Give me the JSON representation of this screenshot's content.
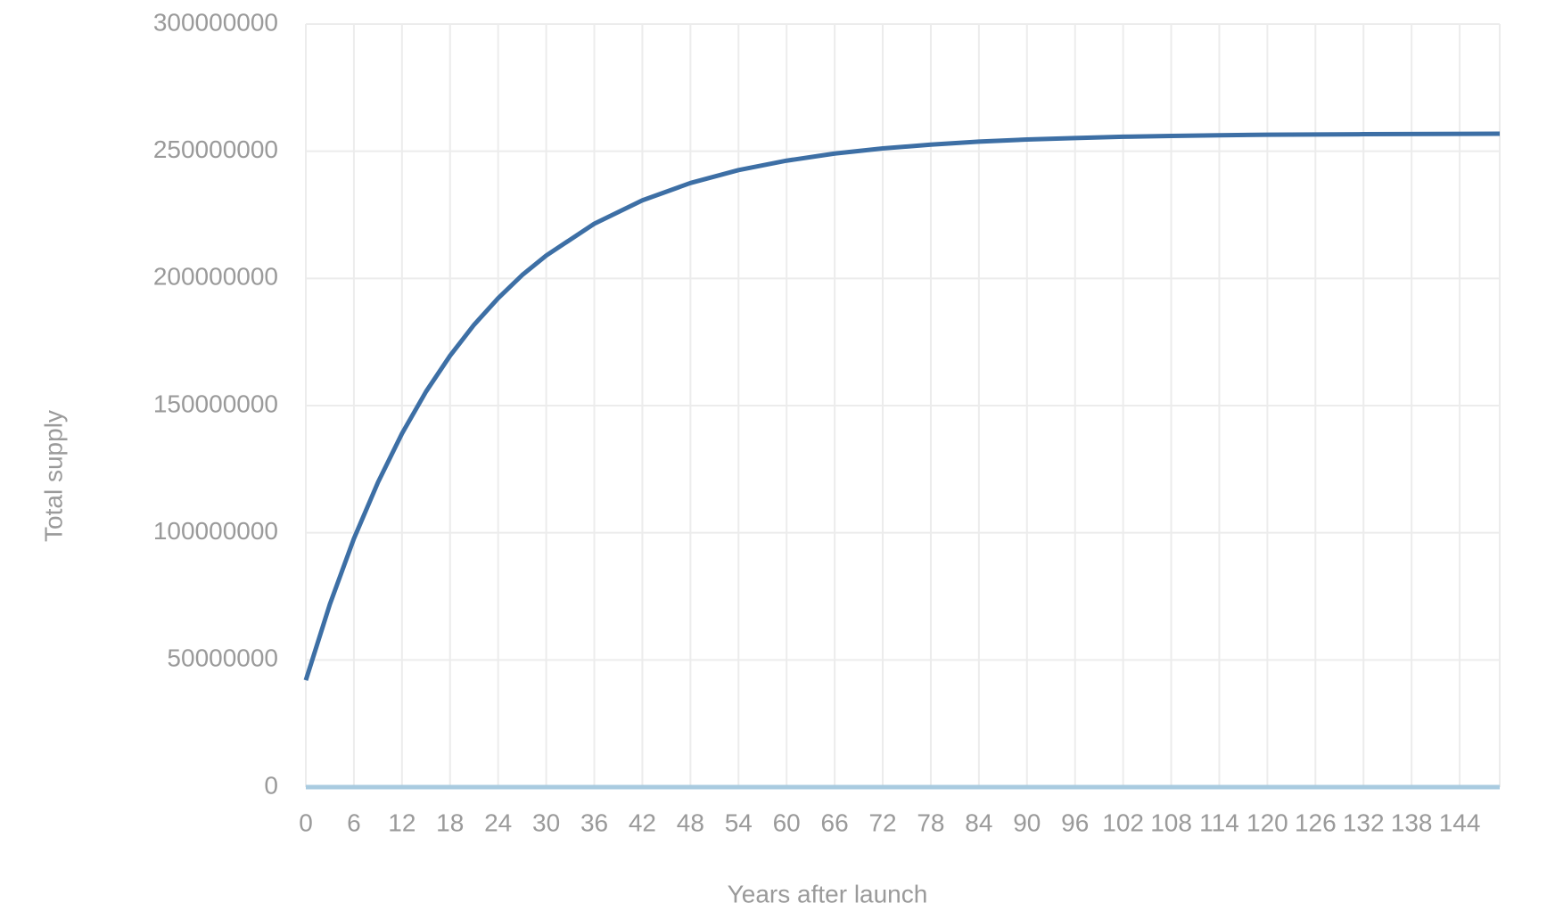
{
  "chart_data": {
    "type": "line",
    "x_label": "Years after launch",
    "y_label": "Total supply",
    "x": [
      0,
      3,
      6,
      9,
      12,
      15,
      18,
      21,
      24,
      27,
      30,
      36,
      42,
      48,
      54,
      60,
      66,
      72,
      78,
      84,
      90,
      96,
      102,
      108,
      114,
      120,
      132,
      149
    ],
    "series": [
      {
        "color": "#3d6fa5",
        "values": [
          42000000,
          71900000,
          97700000,
          119800000,
          139000000,
          155500000,
          169600000,
          181800000,
          192200000,
          201300000,
          209000000,
          221500000,
          230700000,
          237500000,
          242600000,
          246300000,
          249100000,
          251100000,
          252600000,
          253800000,
          254600000,
          255200000,
          255700000,
          256000000,
          256300000,
          256500000,
          256700000,
          256900000
        ]
      }
    ],
    "xlim": [
      0,
      149
    ],
    "xticks": [
      0,
      6,
      12,
      18,
      24,
      30,
      36,
      42,
      48,
      54,
      60,
      66,
      72,
      78,
      84,
      90,
      96,
      102,
      108,
      114,
      120,
      126,
      132,
      138,
      144
    ],
    "ylim": [
      0,
      300000000
    ],
    "yticks": [
      0,
      50000000,
      100000000,
      150000000,
      200000000,
      250000000,
      300000000
    ],
    "grid": true,
    "axis_color": "#a9cbe0"
  }
}
